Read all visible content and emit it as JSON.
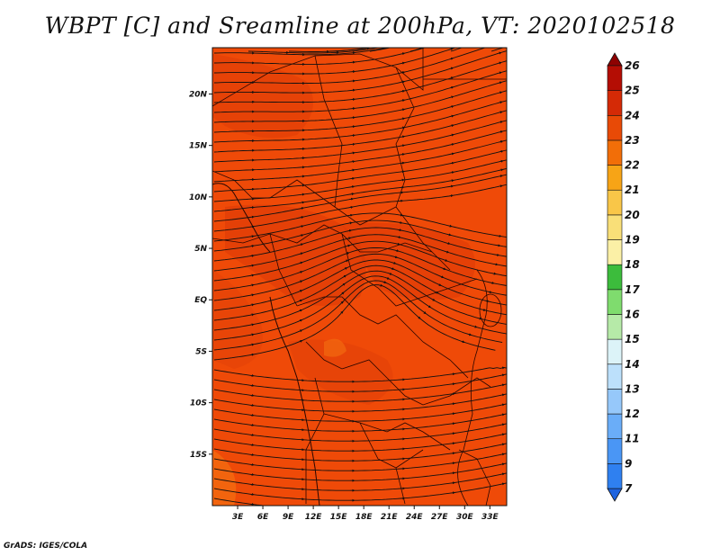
{
  "title": "WBPT [C] and Sreamline at 200hPa, VT: 2020102518",
  "credit": "GrADS: IGES/COLA",
  "map": {
    "lat_ticks": [
      "20N",
      "15N",
      "10N",
      "5N",
      "EQ",
      "5S",
      "10S",
      "15S"
    ],
    "lon_ticks": [
      "3E",
      "6E",
      "9E",
      "12E",
      "15E",
      "18E",
      "21E",
      "24E",
      "27E",
      "30E",
      "33E"
    ],
    "lon_range": [
      0,
      35
    ],
    "lat_range": [
      -20,
      24.5
    ],
    "background_color": "#ef4a08"
  },
  "colorbar": {
    "labels": [
      "7",
      "9",
      "11",
      "12",
      "13",
      "14",
      "15",
      "16",
      "17",
      "18",
      "19",
      "20",
      "21",
      "22",
      "23",
      "24",
      "25",
      "26"
    ],
    "colors": [
      "#1e64e0",
      "#2f80f0",
      "#4a96f5",
      "#6aadf8",
      "#96c8fa",
      "#bce0fb",
      "#dcf3f8",
      "#b6eaa8",
      "#7fdc6e",
      "#3cbc3c",
      "#fbf0a6",
      "#f9df78",
      "#f9c648",
      "#f7a416",
      "#f26e08",
      "#e84a06",
      "#d42a06",
      "#b40d04",
      "#8e0202"
    ]
  }
}
